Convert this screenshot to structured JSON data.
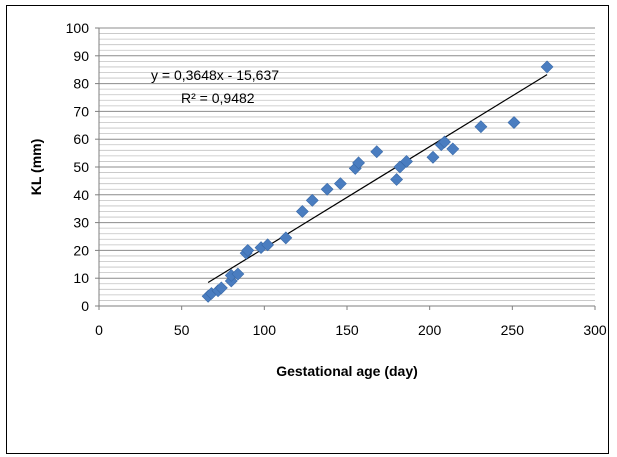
{
  "chart_data": {
    "type": "scatter",
    "xlabel": "Gestational age (day)",
    "ylabel": "KL (mm)",
    "xlim": [
      0,
      300
    ],
    "ylim": [
      0,
      100
    ],
    "x_ticks": [
      "0",
      "50",
      "100",
      "150",
      "200",
      "250",
      "300"
    ],
    "y_ticks": [
      "0",
      "10",
      "20",
      "30",
      "40",
      "50",
      "60",
      "70",
      "80",
      "90",
      "100"
    ],
    "grid": "horizontal",
    "marker": "diamond",
    "marker_color": "#4a7dc0",
    "trendline": {
      "slope": 0.3648,
      "intercept": -15.637,
      "x_range": [
        66,
        271
      ],
      "equation": "y = 0,3648x - 15,637",
      "r_squared": "R² = 0,9482"
    },
    "points": [
      {
        "x": 66,
        "y": 3.5
      },
      {
        "x": 68,
        "y": 4.5
      },
      {
        "x": 72,
        "y": 5.5
      },
      {
        "x": 74,
        "y": 6.5
      },
      {
        "x": 80,
        "y": 9
      },
      {
        "x": 80,
        "y": 11
      },
      {
        "x": 84,
        "y": 11.5
      },
      {
        "x": 89,
        "y": 19
      },
      {
        "x": 90,
        "y": 20
      },
      {
        "x": 98,
        "y": 21
      },
      {
        "x": 102,
        "y": 22
      },
      {
        "x": 113,
        "y": 24.5
      },
      {
        "x": 123,
        "y": 34
      },
      {
        "x": 129,
        "y": 38
      },
      {
        "x": 138,
        "y": 42
      },
      {
        "x": 146,
        "y": 44
      },
      {
        "x": 155,
        "y": 49.5
      },
      {
        "x": 157,
        "y": 51.5
      },
      {
        "x": 168,
        "y": 55.5
      },
      {
        "x": 180,
        "y": 45.5
      },
      {
        "x": 182,
        "y": 50
      },
      {
        "x": 186,
        "y": 52
      },
      {
        "x": 202,
        "y": 53.5
      },
      {
        "x": 207,
        "y": 58
      },
      {
        "x": 209,
        "y": 59
      },
      {
        "x": 214,
        "y": 56.5
      },
      {
        "x": 231,
        "y": 64.5
      },
      {
        "x": 251,
        "y": 66
      },
      {
        "x": 271,
        "y": 86
      }
    ]
  }
}
